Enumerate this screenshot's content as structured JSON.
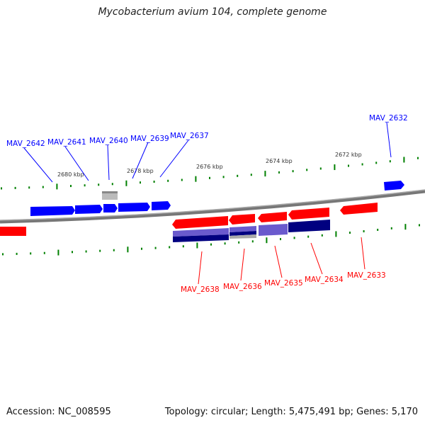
{
  "title": "Mycobacterium avium 104, complete genome",
  "footer": {
    "accession": "Accession: NC_008595",
    "summary": "Topology: circular; Length: 5,475,491 bp; Genes: 5,170"
  },
  "scale_labels": [
    "2680 kbp",
    "2678 kbp",
    "2676 kbp",
    "2674 kbp",
    "2672 kbp"
  ],
  "genes_forward": [
    "MAV_2642",
    "MAV_2641",
    "MAV_2640",
    "MAV_2639",
    "MAV_2637",
    "MAV_2632"
  ],
  "genes_reverse": [
    "MAV_2638",
    "MAV_2636",
    "MAV_2635",
    "MAV_2634",
    "MAV_2633"
  ],
  "colors": {
    "forward": "#0000ff",
    "reverse": "#ff0000",
    "tick": "#008000",
    "backbone": "#777777",
    "purple": "#6a5acd",
    "navy": "#000080"
  }
}
